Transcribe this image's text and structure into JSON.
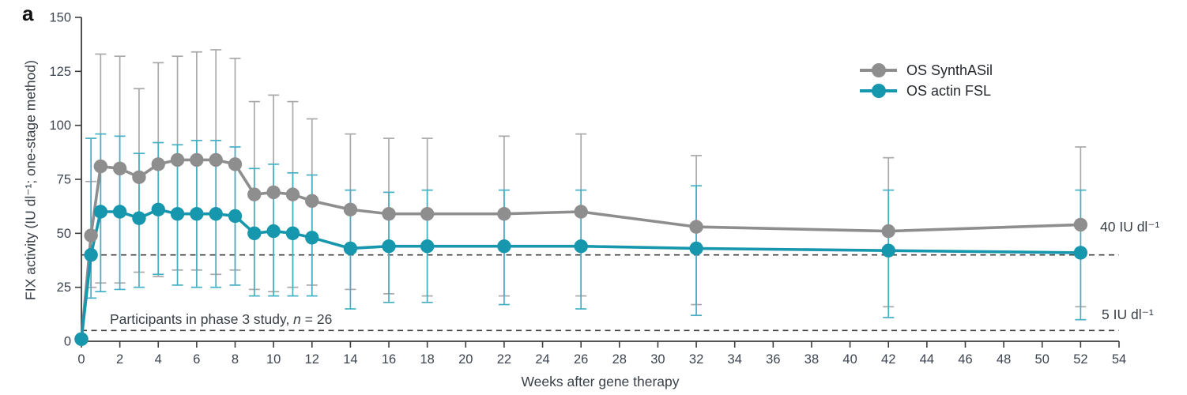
{
  "panel_label": "a",
  "legend": {
    "items": [
      {
        "label": "OS SynthASil",
        "color": "#8e8e8e",
        "error_color": "#a9a9a9"
      },
      {
        "label": "OS actin FSL",
        "color": "#1797ad",
        "error_color": "#45b0c4"
      }
    ]
  },
  "annotations": {
    "participants_prefix": "Participants in phase 3 study, ",
    "participants_n": "n",
    "participants_suffix": " = 26",
    "line40_label": "40 IU dl⁻¹",
    "line5_label": "5 IU dl⁻¹"
  },
  "chart_data": {
    "type": "line",
    "title": "",
    "xlabel": "Weeks after gene therapy",
    "ylabel": "FIX activity (IU dl⁻¹; one-stage method)",
    "xlim": [
      0,
      54
    ],
    "ylim": [
      0,
      150
    ],
    "x_ticks": [
      0,
      2,
      4,
      6,
      8,
      10,
      12,
      14,
      16,
      18,
      20,
      22,
      24,
      26,
      28,
      30,
      32,
      34,
      36,
      38,
      40,
      42,
      44,
      46,
      48,
      50,
      52,
      54
    ],
    "y_ticks": [
      0,
      25,
      50,
      75,
      100,
      125,
      150
    ],
    "grid": false,
    "legend_position": "upper right",
    "reference_lines": [
      {
        "y": 40,
        "label": "40 IU dl⁻¹",
        "style": "dashed",
        "color": "#3f3f3f"
      },
      {
        "y": 5,
        "label": "5 IU dl⁻¹",
        "style": "dashed",
        "color": "#3f3f3f"
      }
    ],
    "x": [
      0,
      0.5,
      1,
      2,
      3,
      4,
      5,
      6,
      7,
      8,
      9,
      10,
      11,
      12,
      14,
      16,
      18,
      22,
      26,
      32,
      42,
      52
    ],
    "series": [
      {
        "name": "OS SynthASil",
        "color": "#8e8e8e",
        "error_color": "#a9a9a9",
        "values": [
          1,
          49,
          81,
          80,
          76,
          82,
          84,
          84,
          84,
          82,
          68,
          69,
          68,
          65,
          61,
          59,
          59,
          59,
          60,
          53,
          51,
          54
        ],
        "err_lo": [
          null,
          25,
          27,
          27,
          32,
          30,
          33,
          33,
          31,
          33,
          24,
          23,
          25,
          26,
          24,
          22,
          21,
          21,
          21,
          17,
          16,
          16
        ],
        "err_hi": [
          null,
          74,
          133,
          132,
          117,
          129,
          132,
          134,
          135,
          131,
          111,
          114,
          111,
          103,
          96,
          94,
          94,
          95,
          96,
          86,
          85,
          90
        ]
      },
      {
        "name": "OS actin FSL",
        "color": "#1797ad",
        "error_color": "#45b0c4",
        "values": [
          1,
          40,
          60,
          60,
          57,
          61,
          59,
          59,
          59,
          58,
          50,
          51,
          50,
          48,
          43,
          44,
          44,
          44,
          44,
          43,
          42,
          41
        ],
        "err_lo": [
          null,
          20,
          23,
          24,
          25,
          31,
          26,
          25,
          25,
          26,
          21,
          21,
          21,
          21,
          15,
          18,
          18,
          17,
          15,
          12,
          11,
          10
        ],
        "err_hi": [
          null,
          94,
          96,
          95,
          87,
          92,
          91,
          93,
          93,
          90,
          80,
          82,
          78,
          77,
          70,
          69,
          70,
          70,
          70,
          72,
          70,
          70
        ]
      }
    ]
  }
}
